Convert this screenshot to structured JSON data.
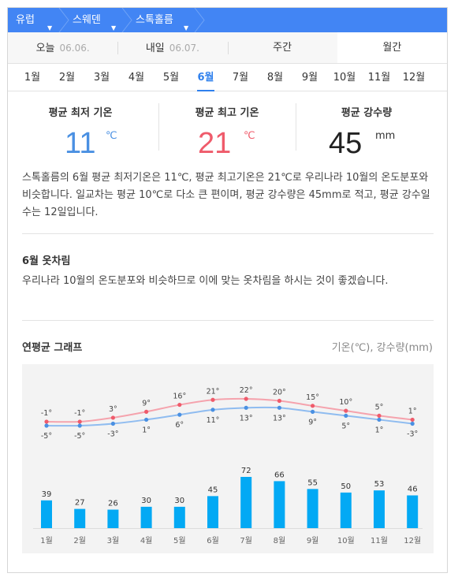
{
  "breadcrumb": {
    "items": [
      {
        "label": "유럽"
      },
      {
        "label": "스웨덴"
      },
      {
        "label": "스톡홀름"
      }
    ]
  },
  "day_tabs": [
    {
      "label": "오늘",
      "date": "06.06."
    },
    {
      "label": "내일",
      "date": "06.07."
    },
    {
      "label": "주간",
      "date": ""
    },
    {
      "label": "월간",
      "date": ""
    }
  ],
  "months": [
    "1월",
    "2월",
    "3월",
    "4월",
    "5월",
    "6월",
    "7월",
    "8월",
    "9월",
    "10월",
    "11월",
    "12월"
  ],
  "selected_month": "6월",
  "stats": {
    "min_label": "평균 최저 기온",
    "min_value": "11",
    "min_unit": "℃",
    "max_label": "평균 최고 기온",
    "max_value": "21",
    "max_unit": "℃",
    "rain_label": "평균 강수량",
    "rain_value": "45",
    "rain_unit": "mm"
  },
  "summary": "스톡홀름의 6월 평균 최저기온은 11℃, 평균 최고기온은 21℃로 우리나라 10월의 온도분포와 비슷합니다. 일교차는 평균 10℃로 다소 큰 편이며, 평균 강수량은 45mm로 적고, 평균 강수일수는 12일입니다.",
  "clothing": {
    "title": "6월 옷차림",
    "text": "우리나라 10월의 온도분포와 비슷하므로 이에 맞는 옷차림을 하시는 것이 좋겠습니다."
  },
  "graph": {
    "title": "연평균 그래프",
    "unit": "기온(℃), 강수량(mm)"
  },
  "colors": {
    "brand": "#4285f4",
    "min_temp": "#4a90e2",
    "max_temp": "#ef5b6b",
    "bar": "#03a9f4",
    "active_month": "#2f80ed"
  },
  "chart_data": {
    "type": "line+bar",
    "categories": [
      "1월",
      "2월",
      "3월",
      "4월",
      "5월",
      "6월",
      "7월",
      "8월",
      "9월",
      "10월",
      "11월",
      "12월"
    ],
    "series": [
      {
        "name": "평균 최고 기온",
        "values": [
          -1,
          -1,
          3,
          9,
          16,
          21,
          22,
          20,
          15,
          10,
          5,
          1
        ],
        "labels": [
          "-1°",
          "-1°",
          "3°",
          "9°",
          "16°",
          "21°",
          "22°",
          "20°",
          "15°",
          "10°",
          "5°",
          "1°"
        ]
      },
      {
        "name": "평균 최저 기온",
        "values": [
          -5,
          -5,
          -3,
          1,
          6,
          11,
          13,
          13,
          9,
          5,
          1,
          -3
        ],
        "labels": [
          "-5°",
          "-5°",
          "-3°",
          "1°",
          "6°",
          "11°",
          "13°",
          "13°",
          "9°",
          "5°",
          "1°",
          "-3°"
        ]
      },
      {
        "name": "강수량",
        "values": [
          39,
          27,
          26,
          30,
          30,
          45,
          72,
          66,
          55,
          50,
          53,
          46
        ]
      }
    ]
  }
}
